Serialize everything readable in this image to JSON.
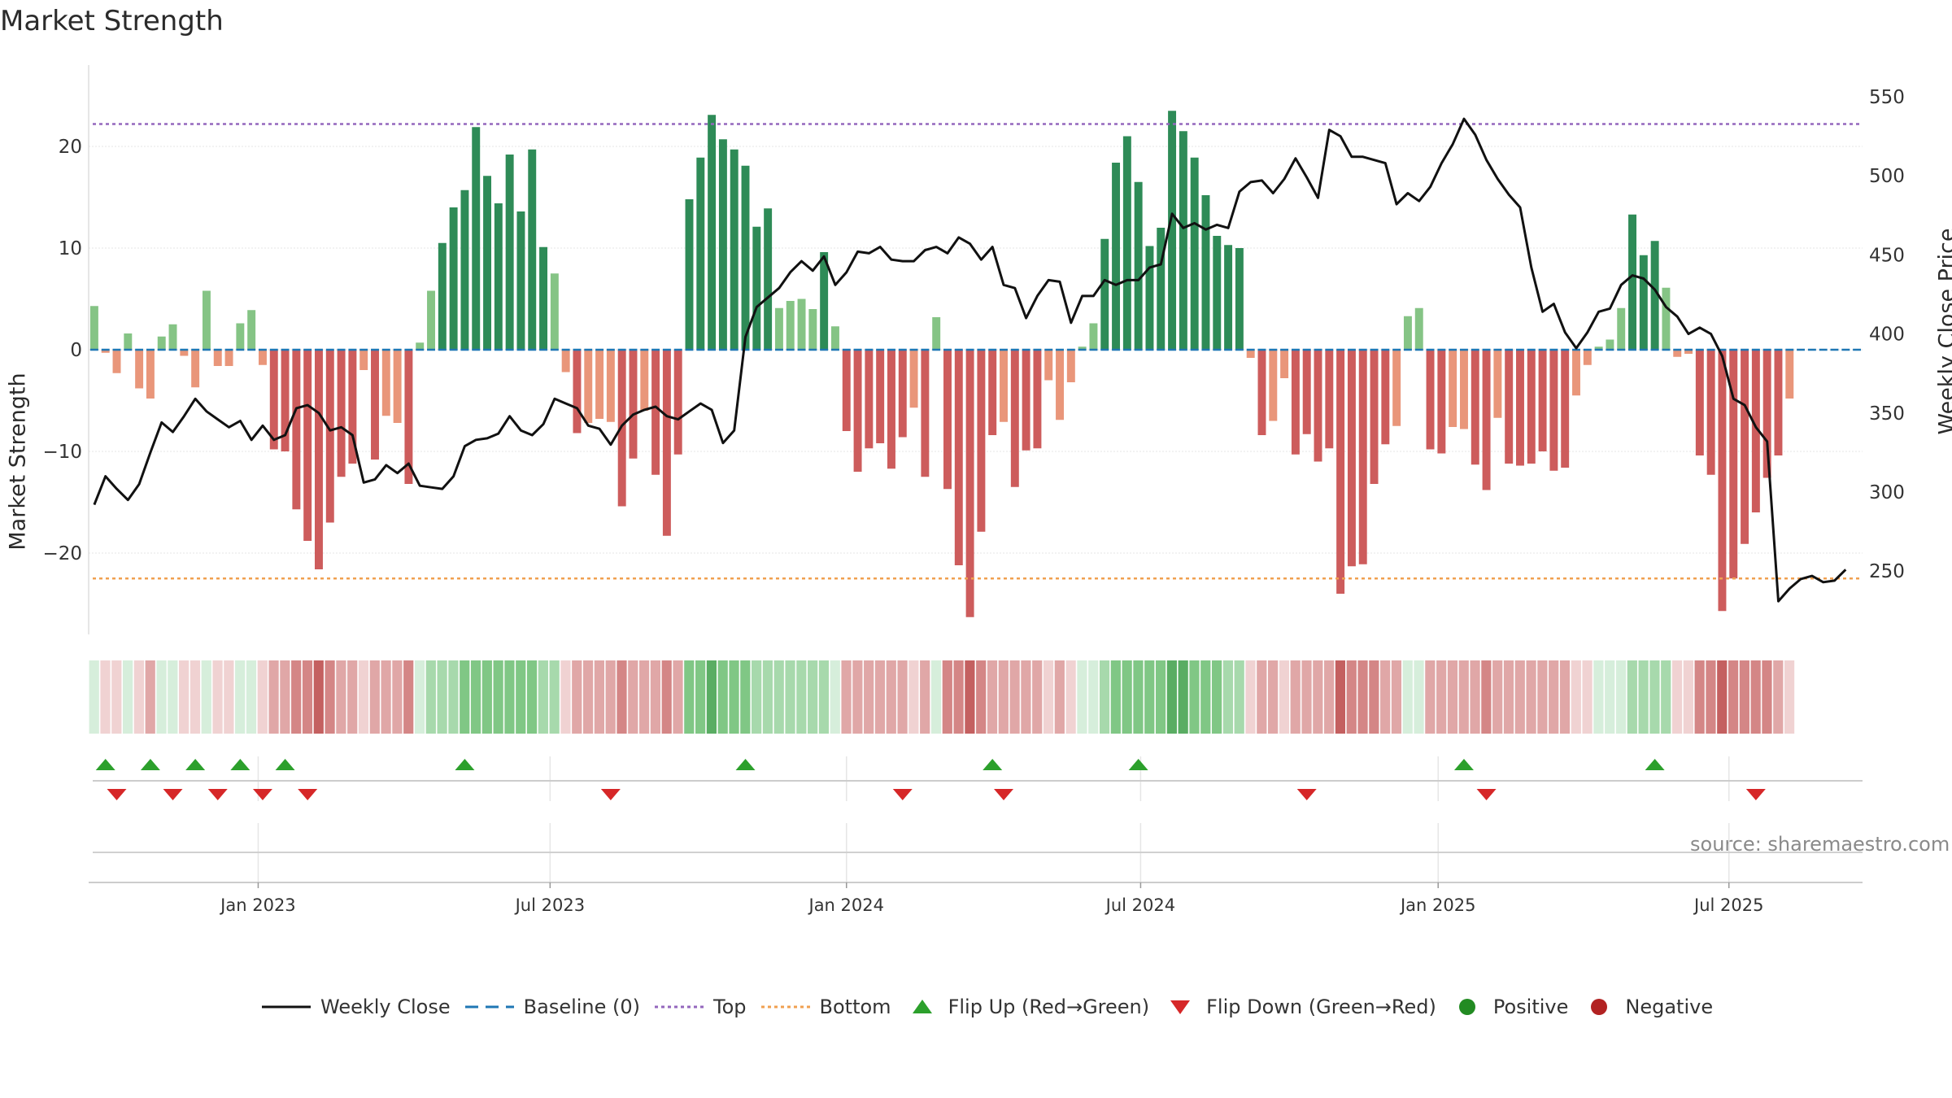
{
  "chart_data": {
    "type": "bar+line",
    "title": "Market Strength",
    "ylabel_left": "Market Strength",
    "ylabel_right": "Weekly Close Price",
    "source": "source: sharemaestro.com",
    "ylim_left": [
      -28,
      28
    ],
    "yticks_left": [
      20,
      10,
      0,
      -10,
      -20
    ],
    "ytick_labels_left": [
      "20",
      "10",
      "0",
      "−10",
      "−20"
    ],
    "ylim_right": [
      210,
      570
    ],
    "yticks_right": [
      250,
      300,
      350,
      400,
      450,
      500,
      550
    ],
    "ytick_labels_right": [
      "250",
      "300",
      "350",
      "400",
      "450",
      "500",
      "550"
    ],
    "top_level": 22.2,
    "bottom_level": -22.5,
    "baseline": 0,
    "n_weeks": 158,
    "week0_date": "2022-10-07",
    "x_ticks": [
      {
        "label": "Jan 2023",
        "week": 14.6
      },
      {
        "label": "Jul 2023",
        "week": 40.6
      },
      {
        "label": "Jan 2024",
        "week": 67.0
      },
      {
        "label": "Jul 2024",
        "week": 93.2
      },
      {
        "label": "Jan 2025",
        "week": 119.7
      },
      {
        "label": "Jul 2025",
        "week": 145.6
      }
    ],
    "strength": [
      4.3,
      -0.3,
      -2.3,
      1.6,
      -3.8,
      -4.8,
      1.3,
      2.5,
      -0.6,
      -3.7,
      5.8,
      -1.6,
      -1.6,
      2.6,
      3.9,
      -1.5,
      -9.8,
      -10.0,
      -15.7,
      -18.8,
      -21.6,
      -17.0,
      -12.5,
      -11.2,
      -2.0,
      -10.8,
      -6.5,
      -7.2,
      -13.2,
      0.7,
      5.8,
      10.5,
      14.0,
      15.7,
      21.9,
      17.1,
      14.4,
      19.2,
      13.6,
      19.7,
      10.1,
      7.5,
      -2.2,
      -8.2,
      -7.2,
      -6.8,
      -7.1,
      -15.4,
      -10.7,
      -6.0,
      -12.3,
      -18.3,
      -10.3,
      14.8,
      18.9,
      23.1,
      20.7,
      19.7,
      18.1,
      12.1,
      13.9,
      4.1,
      4.8,
      5.0,
      4.0,
      9.6,
      2.3,
      -8.0,
      -12.0,
      -9.7,
      -9.2,
      -11.7,
      -8.6,
      -5.7,
      -12.5,
      3.2,
      -13.7,
      -21.2,
      -26.3,
      -17.9,
      -8.4,
      -7.1,
      -13.5,
      -9.9,
      -9.7,
      -3.0,
      -6.9,
      -3.2,
      0.3,
      2.6,
      10.9,
      18.4,
      21.0,
      16.5,
      10.2,
      12.0,
      23.5,
      21.5,
      18.9,
      15.2,
      11.2,
      10.3,
      10.0,
      -0.8,
      -8.4,
      -7.0,
      -2.8,
      -10.3,
      -8.3,
      -11.0,
      -9.7,
      -24.0,
      -21.3,
      -21.1,
      -13.2,
      -9.3,
      -7.5,
      3.3,
      4.1,
      -9.8,
      -10.2,
      -7.6,
      -7.8,
      -11.3,
      -13.8,
      -6.7,
      -11.2,
      -11.4,
      -11.2,
      -10.0,
      -11.9,
      -11.6,
      -4.5,
      -1.5,
      0.3,
      1.0,
      4.1,
      13.3,
      9.3,
      10.7,
      6.1,
      -0.7,
      -0.4,
      -10.4,
      -12.3,
      -25.7,
      -22.5,
      -19.1,
      -16.0,
      -12.6,
      -10.4,
      -4.8
    ],
    "close": [
      292,
      310,
      302,
      295,
      305,
      325,
      344,
      338,
      348,
      359,
      351,
      346,
      341,
      345,
      333,
      342,
      333,
      336,
      353,
      355,
      350,
      339,
      341,
      336,
      306,
      308,
      317,
      312,
      318,
      304,
      303,
      302,
      310,
      329,
      333,
      334,
      337,
      348,
      339,
      336,
      343,
      359,
      356,
      353,
      342,
      340,
      330,
      342,
      349,
      352,
      354,
      348,
      346,
      351,
      356,
      352,
      331,
      339,
      398,
      417,
      423,
      429,
      439,
      446,
      440,
      449,
      431,
      439,
      452,
      451,
      455,
      447,
      446,
      446,
      453,
      455,
      451,
      461,
      457,
      447,
      455,
      431,
      429,
      410,
      424,
      434,
      433,
      407,
      424,
      424,
      434,
      431,
      434,
      434,
      442,
      444,
      476,
      467,
      470,
      466,
      469,
      467,
      490,
      496,
      497,
      489,
      498,
      511,
      499,
      486,
      529,
      525,
      512,
      512,
      510,
      508,
      482,
      489,
      484,
      493,
      508,
      520,
      536,
      526,
      510,
      498,
      488,
      480,
      442,
      414,
      419,
      401,
      391,
      401,
      414,
      416,
      431,
      437,
      435,
      428,
      417,
      411,
      400,
      404,
      400,
      386,
      359,
      355,
      341,
      332,
      231,
      239,
      245,
      247,
      243,
      244,
      251
    ],
    "strip": [
      {
        "state": "pos",
        "level": 1
      },
      {
        "state": "neg",
        "level": 1
      },
      {
        "state": "neg",
        "level": 1
      },
      {
        "state": "pos",
        "level": 1
      },
      {
        "state": "neg",
        "level": 1
      },
      {
        "state": "neg",
        "level": 2
      },
      {
        "state": "pos",
        "level": 1
      },
      {
        "state": "pos",
        "level": 1
      },
      {
        "state": "neg",
        "level": 1
      },
      {
        "state": "neg",
        "level": 1
      },
      {
        "state": "pos",
        "level": 1
      },
      {
        "state": "neg",
        "level": 1
      },
      {
        "state": "neg",
        "level": 1
      },
      {
        "state": "pos",
        "level": 1
      },
      {
        "state": "pos",
        "level": 1
      },
      {
        "state": "neg",
        "level": 1
      },
      {
        "state": "neg",
        "level": 2
      },
      {
        "state": "neg",
        "level": 2
      },
      {
        "state": "neg",
        "level": 3
      },
      {
        "state": "neg",
        "level": 3
      },
      {
        "state": "neg",
        "level": 4
      },
      {
        "state": "neg",
        "level": 3
      },
      {
        "state": "neg",
        "level": 2
      },
      {
        "state": "neg",
        "level": 2
      },
      {
        "state": "neg",
        "level": 1
      },
      {
        "state": "neg",
        "level": 2
      },
      {
        "state": "neg",
        "level": 2
      },
      {
        "state": "neg",
        "level": 2
      },
      {
        "state": "neg",
        "level": 3
      },
      {
        "state": "pos",
        "level": 1
      },
      {
        "state": "pos",
        "level": 2
      },
      {
        "state": "pos",
        "level": 2
      },
      {
        "state": "pos",
        "level": 2
      },
      {
        "state": "pos",
        "level": 3
      },
      {
        "state": "pos",
        "level": 3
      },
      {
        "state": "pos",
        "level": 3
      },
      {
        "state": "pos",
        "level": 3
      },
      {
        "state": "pos",
        "level": 3
      },
      {
        "state": "pos",
        "level": 3
      },
      {
        "state": "pos",
        "level": 3
      },
      {
        "state": "pos",
        "level": 2
      },
      {
        "state": "pos",
        "level": 2
      },
      {
        "state": "neg",
        "level": 1
      },
      {
        "state": "neg",
        "level": 2
      },
      {
        "state": "neg",
        "level": 2
      },
      {
        "state": "neg",
        "level": 2
      },
      {
        "state": "neg",
        "level": 2
      },
      {
        "state": "neg",
        "level": 3
      },
      {
        "state": "neg",
        "level": 2
      },
      {
        "state": "neg",
        "level": 2
      },
      {
        "state": "neg",
        "level": 2
      },
      {
        "state": "neg",
        "level": 3
      },
      {
        "state": "neg",
        "level": 2
      },
      {
        "state": "pos",
        "level": 3
      },
      {
        "state": "pos",
        "level": 3
      },
      {
        "state": "pos",
        "level": 4
      },
      {
        "state": "pos",
        "level": 3
      },
      {
        "state": "pos",
        "level": 3
      },
      {
        "state": "pos",
        "level": 3
      },
      {
        "state": "pos",
        "level": 2
      },
      {
        "state": "pos",
        "level": 2
      },
      {
        "state": "pos",
        "level": 2
      },
      {
        "state": "pos",
        "level": 2
      },
      {
        "state": "pos",
        "level": 2
      },
      {
        "state": "pos",
        "level": 2
      },
      {
        "state": "pos",
        "level": 2
      },
      {
        "state": "pos",
        "level": 1
      },
      {
        "state": "neg",
        "level": 2
      },
      {
        "state": "neg",
        "level": 2
      },
      {
        "state": "neg",
        "level": 2
      },
      {
        "state": "neg",
        "level": 2
      },
      {
        "state": "neg",
        "level": 2
      },
      {
        "state": "neg",
        "level": 2
      },
      {
        "state": "neg",
        "level": 1
      },
      {
        "state": "neg",
        "level": 2
      },
      {
        "state": "pos",
        "level": 1
      },
      {
        "state": "neg",
        "level": 3
      },
      {
        "state": "neg",
        "level": 3
      },
      {
        "state": "neg",
        "level": 4
      },
      {
        "state": "neg",
        "level": 3
      },
      {
        "state": "neg",
        "level": 2
      },
      {
        "state": "neg",
        "level": 2
      },
      {
        "state": "neg",
        "level": 2
      },
      {
        "state": "neg",
        "level": 2
      },
      {
        "state": "neg",
        "level": 2
      },
      {
        "state": "neg",
        "level": 1
      },
      {
        "state": "neg",
        "level": 2
      },
      {
        "state": "neg",
        "level": 1
      },
      {
        "state": "pos",
        "level": 1
      },
      {
        "state": "pos",
        "level": 1
      },
      {
        "state": "pos",
        "level": 2
      },
      {
        "state": "pos",
        "level": 3
      },
      {
        "state": "pos",
        "level": 3
      },
      {
        "state": "pos",
        "level": 3
      },
      {
        "state": "pos",
        "level": 3
      },
      {
        "state": "pos",
        "level": 3
      },
      {
        "state": "pos",
        "level": 4
      },
      {
        "state": "pos",
        "level": 4
      },
      {
        "state": "pos",
        "level": 3
      },
      {
        "state": "pos",
        "level": 3
      },
      {
        "state": "pos",
        "level": 3
      },
      {
        "state": "pos",
        "level": 2
      },
      {
        "state": "pos",
        "level": 2
      },
      {
        "state": "neg",
        "level": 1
      },
      {
        "state": "neg",
        "level": 2
      },
      {
        "state": "neg",
        "level": 2
      },
      {
        "state": "neg",
        "level": 1
      },
      {
        "state": "neg",
        "level": 2
      },
      {
        "state": "neg",
        "level": 2
      },
      {
        "state": "neg",
        "level": 2
      },
      {
        "state": "neg",
        "level": 2
      },
      {
        "state": "neg",
        "level": 4
      },
      {
        "state": "neg",
        "level": 3
      },
      {
        "state": "neg",
        "level": 3
      },
      {
        "state": "neg",
        "level": 3
      },
      {
        "state": "neg",
        "level": 2
      },
      {
        "state": "neg",
        "level": 2
      },
      {
        "state": "pos",
        "level": 1
      },
      {
        "state": "pos",
        "level": 1
      },
      {
        "state": "neg",
        "level": 2
      },
      {
        "state": "neg",
        "level": 2
      },
      {
        "state": "neg",
        "level": 2
      },
      {
        "state": "neg",
        "level": 2
      },
      {
        "state": "neg",
        "level": 2
      },
      {
        "state": "neg",
        "level": 3
      },
      {
        "state": "neg",
        "level": 2
      },
      {
        "state": "neg",
        "level": 2
      },
      {
        "state": "neg",
        "level": 2
      },
      {
        "state": "neg",
        "level": 2
      },
      {
        "state": "neg",
        "level": 2
      },
      {
        "state": "neg",
        "level": 2
      },
      {
        "state": "neg",
        "level": 2
      },
      {
        "state": "neg",
        "level": 1
      },
      {
        "state": "neg",
        "level": 1
      },
      {
        "state": "pos",
        "level": 1
      },
      {
        "state": "pos",
        "level": 1
      },
      {
        "state": "pos",
        "level": 1
      },
      {
        "state": "pos",
        "level": 2
      },
      {
        "state": "pos",
        "level": 2
      },
      {
        "state": "pos",
        "level": 2
      },
      {
        "state": "pos",
        "level": 2
      },
      {
        "state": "neg",
        "level": 1
      },
      {
        "state": "neg",
        "level": 1
      },
      {
        "state": "neg",
        "level": 3
      },
      {
        "state": "neg",
        "level": 3
      },
      {
        "state": "neg",
        "level": 4
      },
      {
        "state": "neg",
        "level": 3
      },
      {
        "state": "neg",
        "level": 3
      },
      {
        "state": "neg",
        "level": 3
      },
      {
        "state": "neg",
        "level": 3
      },
      {
        "state": "neg",
        "level": 2
      },
      {
        "state": "neg",
        "level": 1
      }
    ],
    "flip_up_weeks": [
      1,
      5,
      9,
      13,
      17,
      33,
      58,
      80,
      93,
      122,
      139
    ],
    "flip_down_weeks": [
      2,
      7,
      11,
      15,
      19,
      46,
      72,
      81,
      108,
      124,
      148
    ]
  },
  "legend": [
    {
      "key": "weekly-close",
      "label": "Weekly Close",
      "color": "#111111"
    },
    {
      "key": "baseline",
      "label": "Baseline (0)",
      "color": "#1f77b4"
    },
    {
      "key": "top",
      "label": "Top",
      "color": "#9467bd"
    },
    {
      "key": "bottom",
      "label": "Bottom",
      "color": "#f0a050"
    },
    {
      "key": "flip-up",
      "label": "Flip Up (Red→Green)",
      "color": "#2ca02c"
    },
    {
      "key": "flip-down",
      "label": "Flip Down (Green→Red)",
      "color": "#d62728"
    },
    {
      "key": "positive",
      "label": "Positive",
      "color": "#228b22"
    },
    {
      "key": "negative",
      "label": "Negative",
      "color": "#b22222"
    }
  ],
  "colors": {
    "pos_strong": "#2e8b57",
    "pos_weak": "#85c485",
    "neg_strong": "#cd5c5c",
    "neg_weak": "#e9967a",
    "strip_pos": [
      "#d6eedb",
      "#a7d9ac",
      "#80c785",
      "#5aad63"
    ],
    "strip_neg": [
      "#f0d2d2",
      "#e0a7a7",
      "#d48686",
      "#c46060"
    ]
  }
}
